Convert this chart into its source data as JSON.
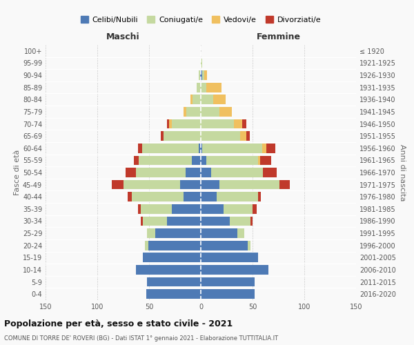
{
  "age_groups": [
    "0-4",
    "5-9",
    "10-14",
    "15-19",
    "20-24",
    "25-29",
    "30-34",
    "35-39",
    "40-44",
    "45-49",
    "50-54",
    "55-59",
    "60-64",
    "65-69",
    "70-74",
    "75-79",
    "80-84",
    "85-89",
    "90-94",
    "95-99",
    "100+"
  ],
  "birth_years": [
    "2016-2020",
    "2011-2015",
    "2006-2010",
    "2001-2005",
    "1996-2000",
    "1991-1995",
    "1986-1990",
    "1981-1985",
    "1976-1980",
    "1971-1975",
    "1966-1970",
    "1961-1965",
    "1956-1960",
    "1951-1955",
    "1946-1950",
    "1941-1945",
    "1936-1940",
    "1931-1935",
    "1926-1930",
    "1921-1925",
    "≤ 1920"
  ],
  "male": {
    "celibi": [
      53,
      52,
      63,
      56,
      51,
      44,
      33,
      28,
      17,
      20,
      15,
      9,
      2,
      0,
      0,
      0,
      0,
      0,
      1,
      0,
      0
    ],
    "coniugati": [
      0,
      0,
      0,
      0,
      3,
      8,
      23,
      30,
      50,
      55,
      48,
      51,
      55,
      36,
      28,
      14,
      8,
      4,
      1,
      0,
      0
    ],
    "vedovi": [
      0,
      0,
      0,
      0,
      0,
      0,
      0,
      0,
      0,
      0,
      0,
      0,
      0,
      0,
      3,
      3,
      2,
      0,
      0,
      0,
      0
    ],
    "divorziati": [
      0,
      0,
      0,
      0,
      0,
      0,
      2,
      3,
      4,
      11,
      10,
      5,
      4,
      3,
      2,
      0,
      0,
      0,
      0,
      0,
      0
    ]
  },
  "female": {
    "nubili": [
      52,
      52,
      65,
      55,
      45,
      35,
      28,
      22,
      15,
      18,
      10,
      5,
      1,
      0,
      0,
      0,
      0,
      0,
      1,
      0,
      0
    ],
    "coniugate": [
      0,
      0,
      0,
      0,
      3,
      7,
      20,
      28,
      40,
      58,
      50,
      50,
      58,
      38,
      32,
      18,
      12,
      5,
      2,
      1,
      0
    ],
    "vedove": [
      0,
      0,
      0,
      0,
      0,
      0,
      0,
      0,
      0,
      0,
      0,
      2,
      4,
      6,
      8,
      12,
      12,
      15,
      3,
      0,
      0
    ],
    "divorziate": [
      0,
      0,
      0,
      0,
      0,
      0,
      2,
      4,
      3,
      10,
      13,
      11,
      9,
      3,
      4,
      0,
      0,
      0,
      0,
      0,
      0
    ]
  },
  "colors": {
    "celibi": "#4e7ab5",
    "coniugati": "#c5d9a0",
    "vedovi": "#f0c060",
    "divorziati": "#c0392b"
  },
  "xlim": 150,
  "title": "Popolazione per età, sesso e stato civile - 2021",
  "subtitle": "COMUNE DI TORRE DE' ROVERI (BG) - Dati ISTAT 1° gennaio 2021 - Elaborazione TUTTITALIA.IT",
  "ylabel_left": "Fasce di età",
  "ylabel_right": "Anni di nascita",
  "xlabel_left": "Maschi",
  "xlabel_right": "Femmine",
  "bg_color": "#f9f9f9",
  "grid_color": "#cccccc"
}
